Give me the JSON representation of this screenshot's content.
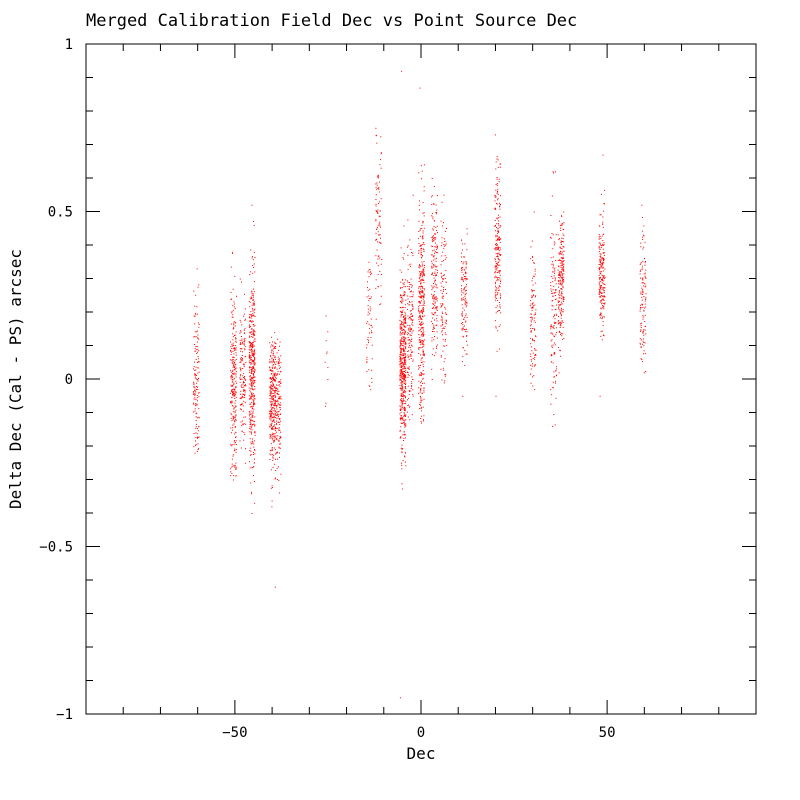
{
  "chart_data": {
    "type": "scatter",
    "title": "Merged Calibration Field Dec vs Point Source Dec",
    "xlabel": "Dec",
    "ylabel": "Delta Dec (Cal - PS) arcsec",
    "xlim": [
      -90,
      90
    ],
    "ylim": [
      -1,
      1
    ],
    "x_ticks": [
      -50,
      0,
      50
    ],
    "x_tick_labels": [
      "−50",
      "0",
      "50"
    ],
    "y_ticks": [
      -1,
      -0.5,
      0,
      0.5,
      1
    ],
    "y_tick_labels": [
      "−1",
      "−0.5",
      "0",
      "0.5",
      "1"
    ],
    "x_minor_step": 10,
    "y_minor_step": 0.1,
    "grid": false,
    "point_color": "#ff0000",
    "columns": [
      {
        "x": -60.5,
        "center": 0.0,
        "spread": 0.13,
        "min": -0.22,
        "max": 0.33,
        "count": 140
      },
      {
        "x": -50.5,
        "center": -0.01,
        "spread": 0.12,
        "min": -0.3,
        "max": 0.38,
        "count": 260
      },
      {
        "x": -48.0,
        "center": 0.0,
        "spread": 0.1,
        "min": -0.25,
        "max": 0.3,
        "count": 150
      },
      {
        "x": -45.5,
        "center": 0.03,
        "spread": 0.14,
        "min": -0.4,
        "max": 0.52,
        "count": 420
      },
      {
        "x": -40.0,
        "center": -0.08,
        "spread": 0.1,
        "min": -0.38,
        "max": 0.14,
        "count": 300
      },
      {
        "x": -38.5,
        "center": -0.1,
        "spread": 0.1,
        "min": -0.62,
        "max": 0.12,
        "count": 170
      },
      {
        "x": -25.5,
        "center": 0.05,
        "spread": 0.06,
        "min": -0.08,
        "max": 0.19,
        "count": 10
      },
      {
        "x": -14.0,
        "center": 0.15,
        "spread": 0.1,
        "min": -0.03,
        "max": 0.35,
        "count": 60
      },
      {
        "x": -11.5,
        "center": 0.45,
        "spread": 0.14,
        "min": 0.18,
        "max": 0.75,
        "count": 90
      },
      {
        "x": -5.0,
        "center": 0.05,
        "spread": 0.12,
        "min": -0.95,
        "max": 0.92,
        "count": 520
      },
      {
        "x": -3.0,
        "center": 0.15,
        "spread": 0.13,
        "min": -0.12,
        "max": 0.55,
        "count": 160
      },
      {
        "x": 0.0,
        "center": 0.22,
        "spread": 0.16,
        "min": -0.13,
        "max": 0.87,
        "count": 360
      },
      {
        "x": 3.5,
        "center": 0.3,
        "spread": 0.12,
        "min": 0.0,
        "max": 0.6,
        "count": 180
      },
      {
        "x": 6.0,
        "center": 0.25,
        "spread": 0.12,
        "min": -0.01,
        "max": 0.55,
        "count": 110
      },
      {
        "x": 11.5,
        "center": 0.25,
        "spread": 0.09,
        "min": -0.05,
        "max": 0.45,
        "count": 130
      },
      {
        "x": 20.5,
        "center": 0.38,
        "spread": 0.12,
        "min": -0.05,
        "max": 0.73,
        "count": 220
      },
      {
        "x": 30.0,
        "center": 0.18,
        "spread": 0.1,
        "min": -0.03,
        "max": 0.5,
        "count": 110
      },
      {
        "x": 35.5,
        "center": 0.2,
        "spread": 0.14,
        "min": -0.14,
        "max": 0.62,
        "count": 130
      },
      {
        "x": 37.5,
        "center": 0.3,
        "spread": 0.09,
        "min": 0.02,
        "max": 0.5,
        "count": 220
      },
      {
        "x": 48.5,
        "center": 0.32,
        "spread": 0.09,
        "min": -0.05,
        "max": 0.67,
        "count": 210
      },
      {
        "x": 59.5,
        "center": 0.25,
        "spread": 0.09,
        "min": 0.02,
        "max": 0.52,
        "count": 120
      }
    ]
  }
}
